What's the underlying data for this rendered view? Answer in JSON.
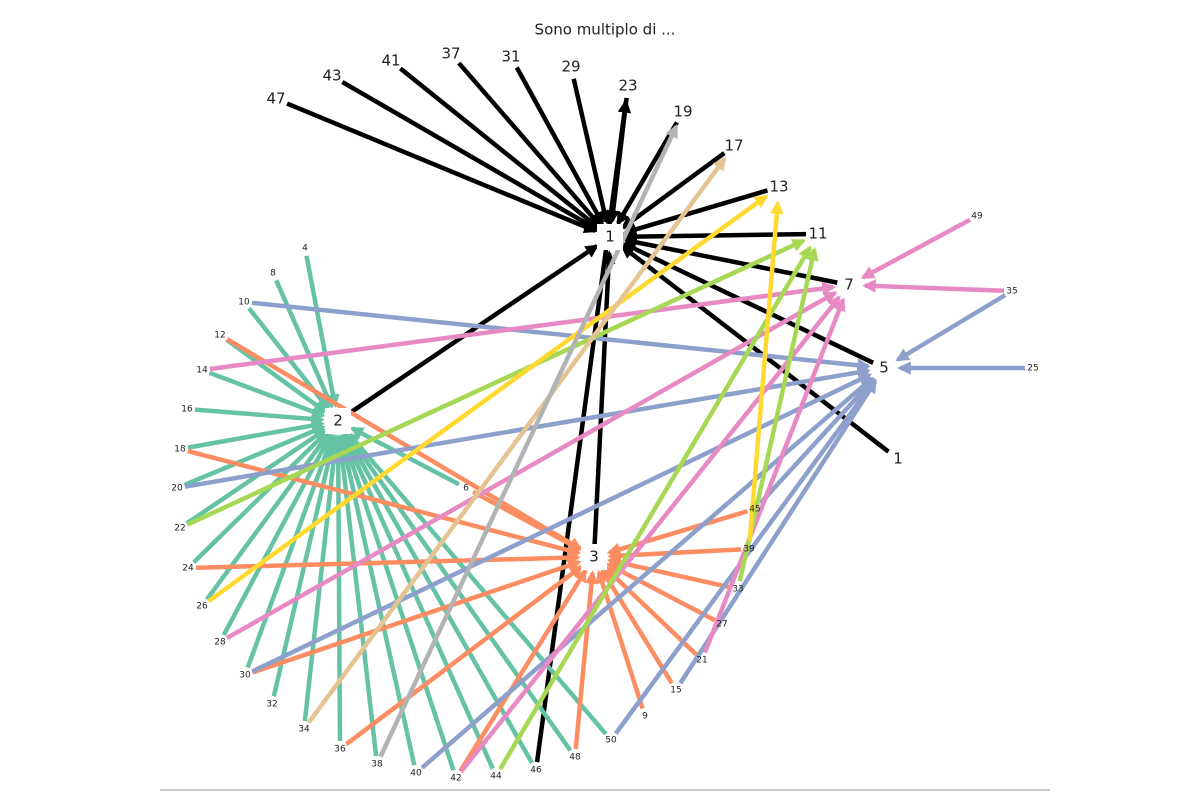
{
  "title": "Sono multiplo di ...",
  "nodes": [
    {
      "label": "1"
    },
    {
      "label": "2"
    },
    {
      "label": "3"
    },
    {
      "label": "5"
    },
    {
      "label": "7"
    },
    {
      "label": "11"
    },
    {
      "label": "13"
    },
    {
      "label": "17"
    },
    {
      "label": "19"
    },
    {
      "label": "23"
    },
    {
      "label": "29"
    },
    {
      "label": "31"
    },
    {
      "label": "37"
    },
    {
      "label": "41"
    },
    {
      "label": "43"
    },
    {
      "label": "47"
    },
    {
      "label": "1"
    },
    {
      "label": "4"
    },
    {
      "label": "6"
    },
    {
      "label": "8"
    },
    {
      "label": "9"
    },
    {
      "label": "10"
    },
    {
      "label": "12"
    },
    {
      "label": "14"
    },
    {
      "label": "15"
    },
    {
      "label": "16"
    },
    {
      "label": "18"
    },
    {
      "label": "20"
    },
    {
      "label": "21"
    },
    {
      "label": "22"
    },
    {
      "label": "24"
    },
    {
      "label": "25"
    },
    {
      "label": "26"
    },
    {
      "label": "27"
    },
    {
      "label": "28"
    },
    {
      "label": "30"
    },
    {
      "label": "32"
    },
    {
      "label": "33"
    },
    {
      "label": "34"
    },
    {
      "label": "35"
    },
    {
      "label": "36"
    },
    {
      "label": "38"
    },
    {
      "label": "39"
    },
    {
      "label": "40"
    },
    {
      "label": "42"
    },
    {
      "label": "44"
    },
    {
      "label": "45"
    },
    {
      "label": "46"
    },
    {
      "label": "48"
    },
    {
      "label": "49"
    },
    {
      "label": "50"
    }
  ],
  "edge_groups": [
    {
      "color": "#000000",
      "target": 0,
      "sources": [
        1,
        2,
        3,
        4,
        5,
        6,
        7,
        8,
        9,
        10,
        11,
        12,
        13,
        14,
        15,
        16
      ]
    },
    {
      "color": "#000000",
      "target": 9,
      "sources": [
        47
      ]
    },
    {
      "color": "#66c2a5",
      "target": 1,
      "sources": [
        17,
        18,
        19,
        21,
        22,
        23,
        25,
        26,
        27,
        29,
        30,
        32,
        34,
        35,
        36,
        38,
        40,
        41,
        43,
        44,
        45,
        47,
        48,
        50
      ]
    },
    {
      "color": "#fc8d62",
      "target": 2,
      "sources": [
        18,
        20,
        22,
        24,
        26,
        28,
        30,
        33,
        35,
        37,
        40,
        42,
        44,
        46,
        48
      ]
    },
    {
      "color": "#8da0cb",
      "target": 3,
      "sources": [
        21,
        24,
        27,
        31,
        35,
        39,
        43,
        46,
        50
      ]
    },
    {
      "color": "#e78ac3",
      "target": 4,
      "sources": [
        23,
        28,
        34,
        39,
        44,
        49
      ]
    },
    {
      "color": "#a6d854",
      "target": 5,
      "sources": [
        29,
        37,
        45
      ]
    },
    {
      "color": "#ffd92f",
      "target": 6,
      "sources": [
        32,
        42
      ]
    },
    {
      "color": "#e5c494",
      "target": 7,
      "sources": [
        38
      ]
    },
    {
      "color": "#b3b3b3",
      "target": 8,
      "sources": [
        41
      ]
    }
  ]
}
